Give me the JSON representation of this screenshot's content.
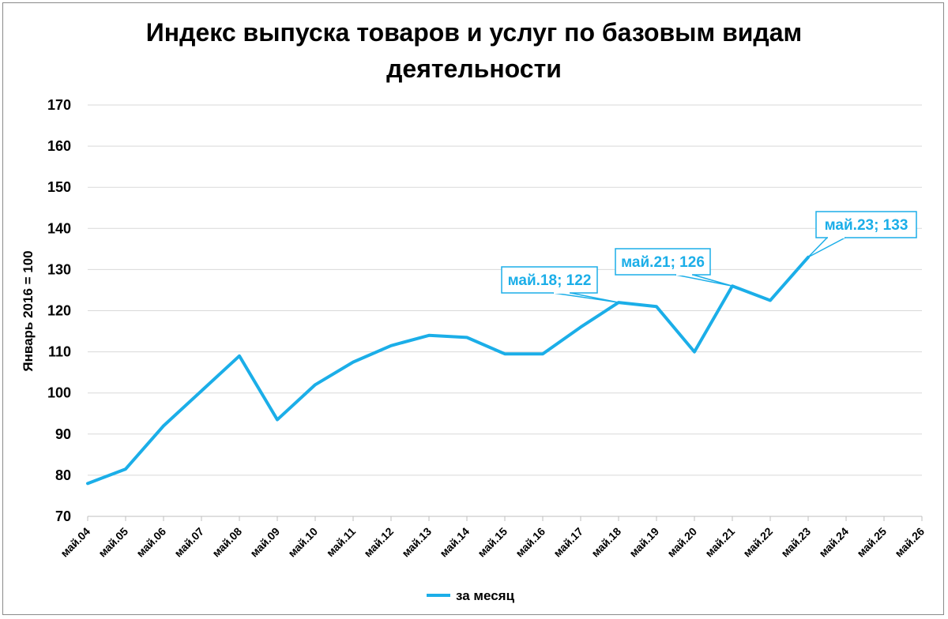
{
  "chart_data": {
    "type": "line",
    "title_line1": "Индекс выпуска товаров и услуг по базовым видам",
    "title_line2": "деятельности",
    "ylabel": "Январь 2016 = 100",
    "xlabel": "",
    "ylim": [
      70,
      170
    ],
    "yticks": [
      70,
      80,
      90,
      100,
      110,
      120,
      130,
      140,
      150,
      160,
      170
    ],
    "grid": true,
    "legend_position": "bottom",
    "line_color": "#1BAEE8",
    "categories": [
      "май.04",
      "май.05",
      "май.06",
      "май.07",
      "май.08",
      "май.09",
      "май.10",
      "май.11",
      "май.12",
      "май.13",
      "май.14",
      "май.15",
      "май.16",
      "май.17",
      "май.18",
      "май.19",
      "май.20",
      "май.21",
      "май.22",
      "май.23",
      "май.24",
      "май.25",
      "май.26"
    ],
    "series": [
      {
        "name": "за месяц",
        "values": [
          78,
          81.5,
          92,
          100.5,
          109,
          93.5,
          102,
          107.5,
          111.5,
          114,
          113.5,
          109.5,
          109.5,
          116,
          122,
          121,
          110,
          126,
          122.5,
          133,
          null,
          null,
          null
        ]
      }
    ],
    "annotations": [
      {
        "label": "май.18; 122",
        "index": 14
      },
      {
        "label": "май.21; 126",
        "index": 17
      },
      {
        "label": "май.23; 133",
        "index": 19
      }
    ]
  }
}
